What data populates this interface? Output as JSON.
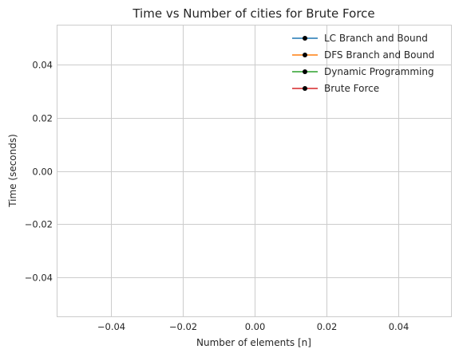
{
  "chart_data": {
    "type": "line",
    "title": "Time vs Number of cities for Brute Force",
    "xlabel": "Number of elements [n]",
    "ylabel": "Time (seconds)",
    "xlim": [
      -0.055,
      0.055
    ],
    "ylim": [
      -0.055,
      0.055
    ],
    "x_ticks": [
      -0.04,
      -0.02,
      0.0,
      0.02,
      0.04
    ],
    "x_tick_labels": [
      "−0.04",
      "−0.02",
      "0.00",
      "0.02",
      "0.04"
    ],
    "y_ticks": [
      -0.04,
      -0.02,
      0.0,
      0.02,
      0.04
    ],
    "y_tick_labels": [
      "−0.04",
      "−0.02",
      "0.00",
      "0.02",
      "0.04"
    ],
    "grid": true,
    "legend_position": "top-right",
    "marker": "circle",
    "marker_color": "#000000",
    "series": [
      {
        "name": "LC Branch and Bound",
        "color": "#1f77b4",
        "x": [],
        "y": []
      },
      {
        "name": "DFS Branch and Bound",
        "color": "#ff7f0e",
        "x": [],
        "y": []
      },
      {
        "name": "Dynamic Programming",
        "color": "#2ca02c",
        "x": [],
        "y": []
      },
      {
        "name": "Brute Force",
        "color": "#d62728",
        "x": [],
        "y": []
      }
    ]
  }
}
